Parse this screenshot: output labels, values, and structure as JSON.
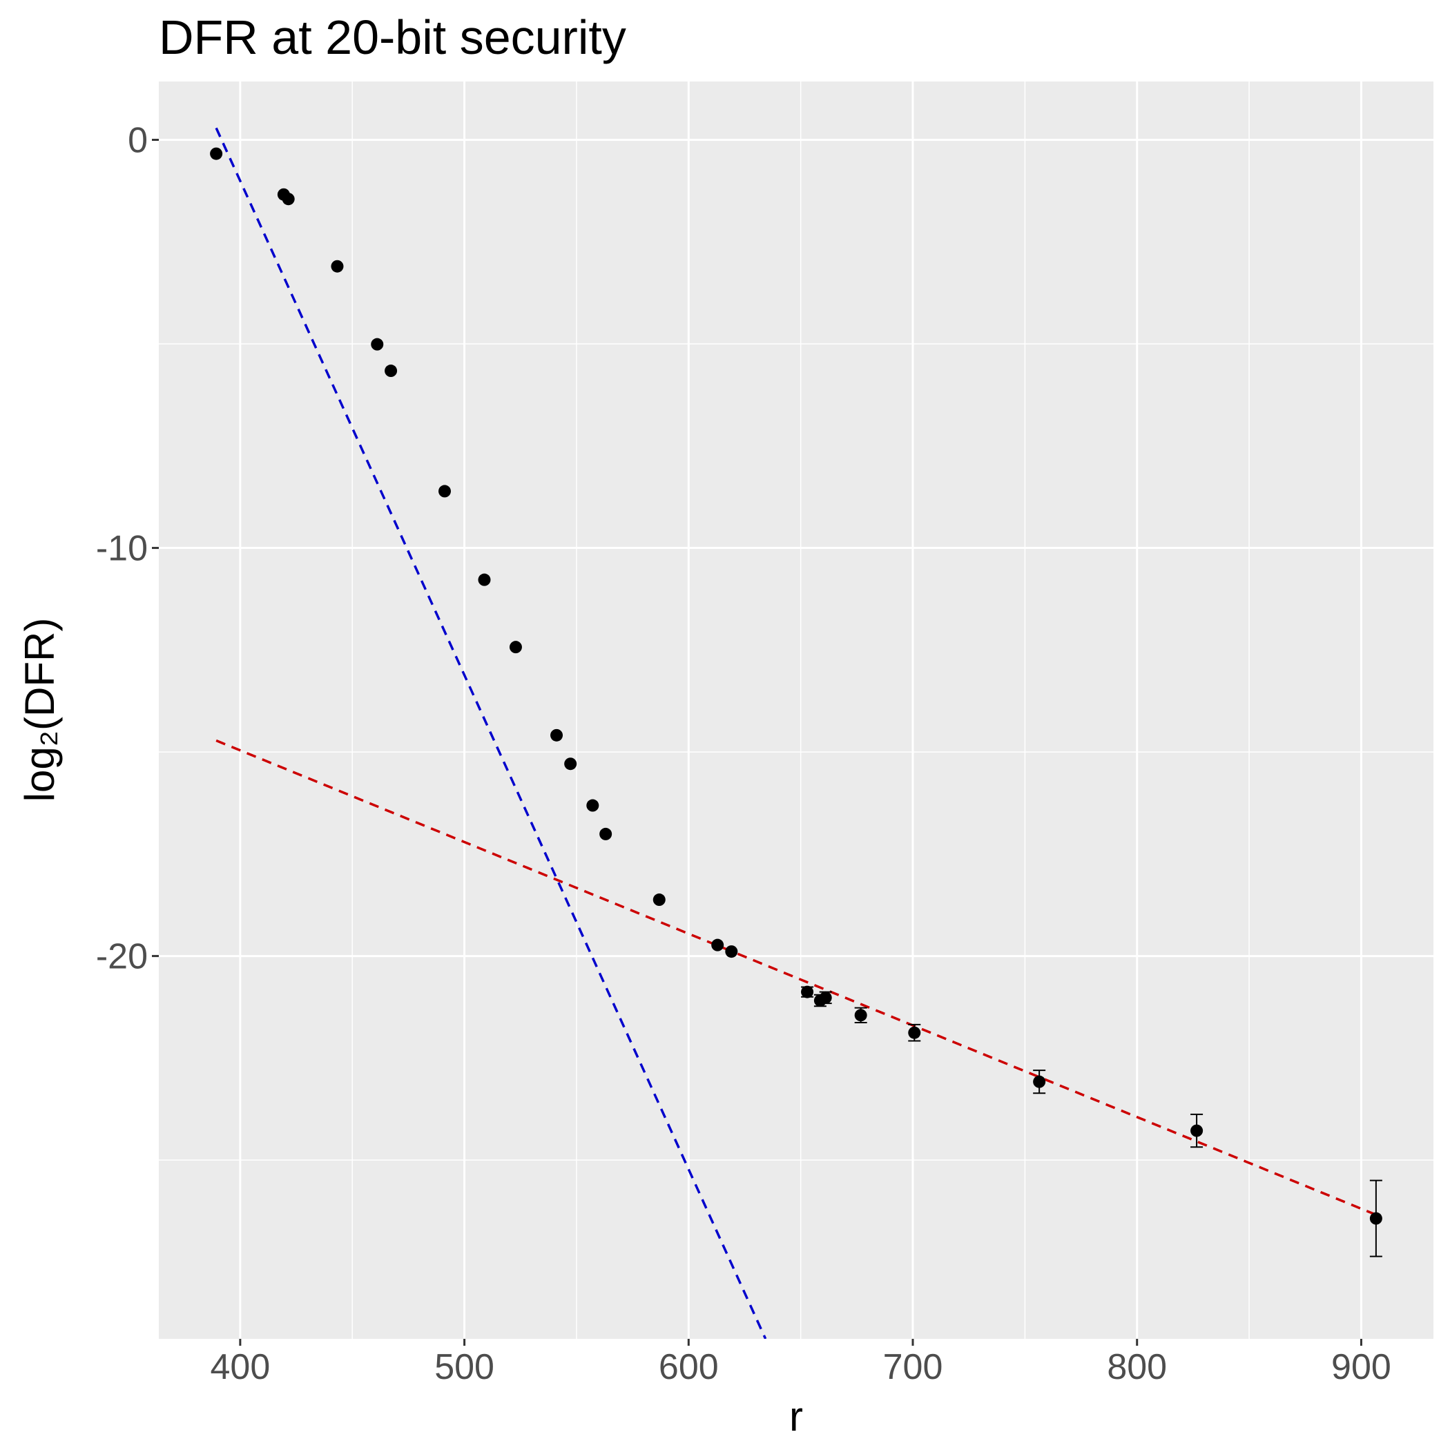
{
  "chart_data": {
    "type": "scatter",
    "title": "DFR at 20-bit security",
    "x_label": "r",
    "y_label": "log₂(DFR)",
    "x": [
      389.3,
      419.4,
      421.5,
      443.3,
      461.1,
      467.2,
      491.2,
      508.9,
      522.9,
      541.1,
      547.3,
      557.2,
      563.0,
      586.9,
      612.9,
      619.1,
      652.9,
      658.7,
      661.1,
      676.8,
      700.7,
      756.4,
      826.6,
      906.6
    ],
    "values": [
      -0.34,
      -1.34,
      -1.45,
      -3.1,
      -5.01,
      -5.66,
      -8.61,
      -10.78,
      -12.43,
      -14.59,
      -15.29,
      -16.31,
      -17.01,
      -18.62,
      -19.73,
      -19.89,
      -20.88,
      -21.09,
      -21.02,
      -21.45,
      -21.88,
      -23.08,
      -24.28,
      -26.43
    ],
    "errors": [
      null,
      null,
      null,
      null,
      null,
      null,
      null,
      null,
      null,
      null,
      null,
      null,
      null,
      null,
      null,
      null,
      0.12,
      0.14,
      0.14,
      0.18,
      0.2,
      0.28,
      0.4,
      0.93
    ],
    "color": "#000000",
    "lines": [
      {
        "color": "#0000cc",
        "x": [
          389.3,
          634.3
        ],
        "y": [
          0.29,
          -29.38
        ]
      },
      {
        "color": "#cc0000",
        "x": [
          389.3,
          906.6
        ],
        "y": [
          -14.72,
          -26.34
        ]
      }
    ],
    "xlim": [
      363.7,
      932.2
    ],
    "ylim": [
      -29.38,
      1.43
    ],
    "xticks": [
      400,
      500,
      600,
      700,
      800,
      900
    ],
    "yticks": [
      0,
      -10,
      -20
    ],
    "x_minor_grid": [
      450,
      550,
      650,
      750,
      850
    ],
    "y_minor_grid": [
      -5,
      -15,
      -25
    ],
    "grid": true
  }
}
